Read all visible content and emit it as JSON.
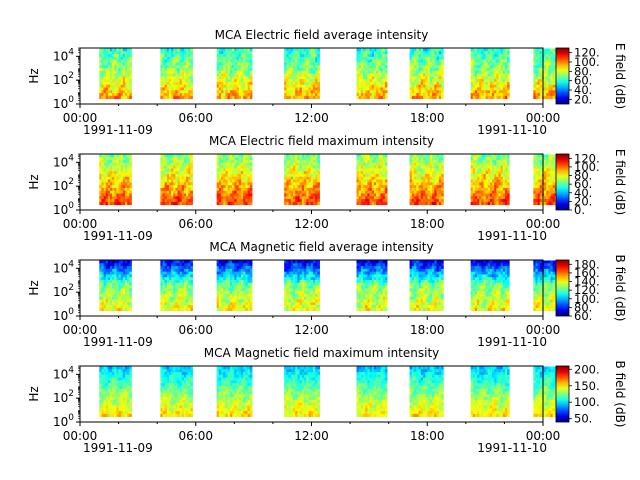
{
  "chart_data": [
    {
      "type": "heatmap",
      "title": "MCA  Electric field average intensity",
      "ylabel": "Hz",
      "yscale": "log",
      "ylim": [
        1,
        50000
      ],
      "yticks": [
        "10^0",
        "10^2",
        "10^4"
      ],
      "xlim": [
        "1991-11-09 00:00",
        "1991-11-10 00:00"
      ],
      "xticks": [
        "00:00",
        "06:00",
        "12:00",
        "18:00",
        "00:00"
      ],
      "xdates": [
        "1991-11-09",
        "1991-11-10"
      ],
      "colorbar": {
        "label": "E field (dB)",
        "ticks": [
          20,
          40,
          60,
          80,
          100,
          120
        ],
        "tick_labels": [
          "20.",
          "40.",
          "60.",
          "80.",
          "100.",
          "120."
        ],
        "range": [
          10,
          130
        ],
        "colormap": "jet"
      },
      "segments": [
        {
          "start": "01:00",
          "end": "02:40"
        },
        {
          "start": "04:10",
          "end": "05:50"
        },
        {
          "start": "07:05",
          "end": "08:55"
        },
        {
          "start": "10:35",
          "end": "12:25"
        },
        {
          "start": "14:20",
          "end": "15:55"
        },
        {
          "start": "17:05",
          "end": "18:50"
        },
        {
          "start": "20:15",
          "end": "22:15"
        },
        {
          "start": "23:30",
          "end": "25:10"
        }
      ],
      "value_profile": {
        "low_freq_db": 95,
        "mid_freq_db": 75,
        "high_freq_db": 60
      }
    },
    {
      "type": "heatmap",
      "title": "MCA  Electric field maximum intensity",
      "ylabel": "Hz",
      "yscale": "log",
      "ylim": [
        1,
        50000
      ],
      "yticks": [
        "10^0",
        "10^2",
        "10^4"
      ],
      "xlim": [
        "1991-11-09 00:00",
        "1991-11-10 00:00"
      ],
      "xticks": [
        "00:00",
        "06:00",
        "12:00",
        "18:00",
        "00:00"
      ],
      "xdates": [
        "1991-11-09",
        "1991-11-10"
      ],
      "colorbar": {
        "label": "E field (dB)",
        "ticks": [
          0,
          20,
          40,
          60,
          80,
          100,
          120
        ],
        "tick_labels": [
          "0.",
          "20.",
          "40.",
          "60.",
          "80.",
          "100.",
          "120."
        ],
        "range": [
          0,
          130
        ],
        "colormap": "jet"
      },
      "segments": [
        {
          "start": "01:00",
          "end": "02:40"
        },
        {
          "start": "04:10",
          "end": "05:50"
        },
        {
          "start": "07:05",
          "end": "08:55"
        },
        {
          "start": "10:35",
          "end": "12:25"
        },
        {
          "start": "14:20",
          "end": "15:55"
        },
        {
          "start": "17:05",
          "end": "18:50"
        },
        {
          "start": "20:15",
          "end": "22:15"
        },
        {
          "start": "23:30",
          "end": "25:10"
        }
      ],
      "value_profile": {
        "low_freq_db": 105,
        "mid_freq_db": 85,
        "high_freq_db": 65
      }
    },
    {
      "type": "heatmap",
      "title": "MCA  Magnetic field average intensity",
      "ylabel": "Hz",
      "yscale": "log",
      "ylim": [
        1,
        50000
      ],
      "yticks": [
        "10^0",
        "10^2",
        "10^4"
      ],
      "xlim": [
        "1991-11-09 00:00",
        "1991-11-10 00:00"
      ],
      "xticks": [
        "00:00",
        "06:00",
        "12:00",
        "18:00",
        "00:00"
      ],
      "xdates": [
        "1991-11-09",
        "1991-11-10"
      ],
      "colorbar": {
        "label": "B field (dB)",
        "ticks": [
          60,
          80,
          100,
          120,
          140,
          160,
          180
        ],
        "tick_labels": [
          "60.",
          "80.",
          "100.",
          "120.",
          "140.",
          "160.",
          "180."
        ],
        "range": [
          60,
          190
        ],
        "colormap": "jet"
      },
      "segments": [
        {
          "start": "01:00",
          "end": "02:40"
        },
        {
          "start": "04:10",
          "end": "05:50"
        },
        {
          "start": "07:05",
          "end": "08:55"
        },
        {
          "start": "10:35",
          "end": "12:25"
        },
        {
          "start": "14:20",
          "end": "15:55"
        },
        {
          "start": "17:05",
          "end": "18:50"
        },
        {
          "start": "20:15",
          "end": "22:15"
        },
        {
          "start": "23:30",
          "end": "25:10"
        }
      ],
      "value_profile": {
        "low_freq_db": 140,
        "mid_freq_db": 125,
        "high_freq_db": 75
      }
    },
    {
      "type": "heatmap",
      "title": "MCA  Magnetic field maximum intensity",
      "ylabel": "Hz",
      "yscale": "log",
      "ylim": [
        1,
        50000
      ],
      "yticks": [
        "10^0",
        "10^2",
        "10^4"
      ],
      "xlim": [
        "1991-11-09 00:00",
        "1991-11-10 00:00"
      ],
      "xticks": [
        "00:00",
        "06:00",
        "12:00",
        "18:00",
        "00:00"
      ],
      "xdates": [
        "1991-11-09",
        "1991-11-10"
      ],
      "colorbar": {
        "label": "B field (dB)",
        "ticks": [
          50,
          100,
          150,
          200
        ],
        "tick_labels": [
          "50.",
          "100.",
          "150.",
          "200."
        ],
        "range": [
          40,
          210
        ],
        "colormap": "jet"
      },
      "segments": [
        {
          "start": "01:00",
          "end": "02:40"
        },
        {
          "start": "04:10",
          "end": "05:50"
        },
        {
          "start": "07:05",
          "end": "08:55"
        },
        {
          "start": "10:35",
          "end": "12:25"
        },
        {
          "start": "14:20",
          "end": "15:55"
        },
        {
          "start": "17:05",
          "end": "18:50"
        },
        {
          "start": "20:15",
          "end": "22:15"
        },
        {
          "start": "23:30",
          "end": "25:10"
        }
      ],
      "value_profile": {
        "low_freq_db": 150,
        "mid_freq_db": 125,
        "high_freq_db": 95
      }
    }
  ]
}
